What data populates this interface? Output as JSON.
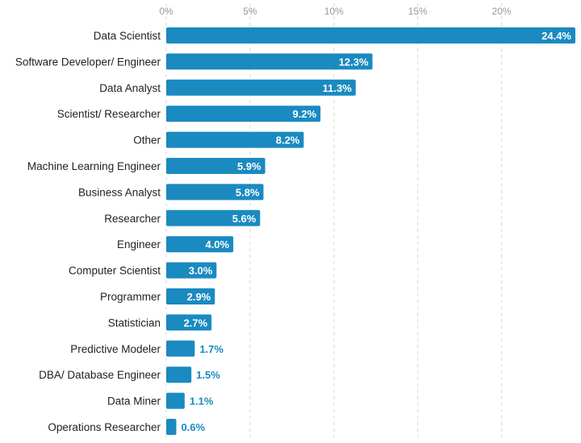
{
  "chart_data": {
    "type": "bar",
    "orientation": "horizontal",
    "title": "",
    "xlabel": "",
    "ylabel": "",
    "xlim": [
      0,
      24.4
    ],
    "ticks": [
      0,
      5,
      10,
      15,
      20
    ],
    "tick_labels": [
      "0%",
      "5%",
      "10%",
      "15%",
      "20%"
    ],
    "grid": true,
    "bar_color": "#1a8ac0",
    "inside_label_color": "#ffffff",
    "outside_label_color": "#1a8ac0",
    "categories": [
      "Data Scientist",
      "Software Developer/ Engineer",
      "Data Analyst",
      "Scientist/ Researcher",
      "Other",
      "Machine Learning Engineer",
      "Business Analyst",
      "Researcher",
      "Engineer",
      "Computer Scientist",
      "Programmer",
      "Statistician",
      "Predictive Modeler",
      "DBA/ Database Engineer",
      "Data Miner",
      "Operations Researcher"
    ],
    "values": [
      24.4,
      12.3,
      11.3,
      9.2,
      8.2,
      5.9,
      5.8,
      5.6,
      4.0,
      3.0,
      2.9,
      2.7,
      1.7,
      1.5,
      1.1,
      0.6
    ],
    "value_labels": [
      "24.4%",
      "12.3%",
      "11.3%",
      "9.2%",
      "8.2%",
      "5.9%",
      "5.8%",
      "5.6%",
      "4.0%",
      "3.0%",
      "2.9%",
      "2.7%",
      "1.7%",
      "1.5%",
      "1.1%",
      "0.6%"
    ]
  }
}
